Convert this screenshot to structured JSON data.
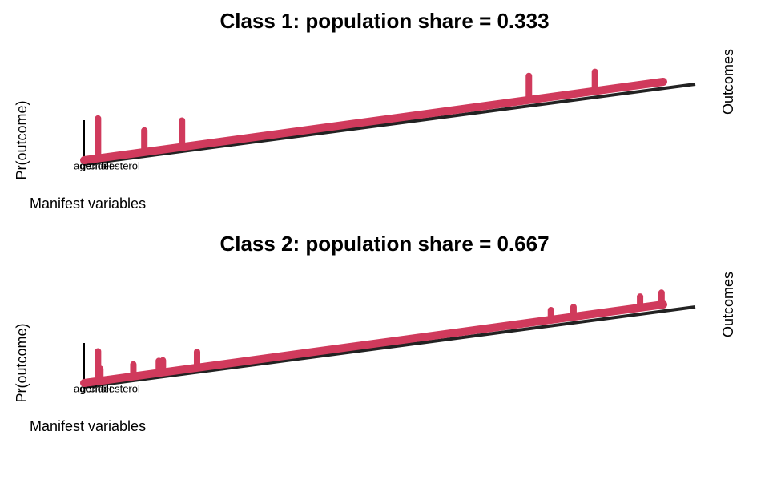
{
  "chart_data": [
    {
      "type": "spike3d",
      "title": "Class 1: population share = 0.333",
      "ylabel": "Pr(outcome)",
      "xlabel": "Manifest variables",
      "zlabel": "Outcomes",
      "variables": [
        "age",
        "gender",
        "cholesterol"
      ],
      "color": "#d03a5c",
      "x": [
        0.024,
        0.104,
        0.169,
        0.768,
        0.882
      ],
      "values": [
        0.83,
        0.45,
        0.55,
        0.5,
        0.4
      ],
      "xlim": [
        0,
        1
      ],
      "ylim": [
        0,
        1
      ]
    },
    {
      "type": "spike3d",
      "title": "Class 2: population share = 0.667",
      "ylabel": "Pr(outcome)",
      "xlabel": "Manifest variables",
      "zlabel": "Outcomes",
      "variables": [
        "age",
        "gender",
        "cholesterol"
      ],
      "color": "#d03a5c",
      "x": [
        0.024,
        0.028,
        0.085,
        0.129,
        0.136,
        0.195,
        0.806,
        0.845,
        0.96,
        0.997
      ],
      "values": [
        0.62,
        0.25,
        0.25,
        0.25,
        0.25,
        0.33,
        0.2,
        0.2,
        0.23,
        0.25
      ],
      "xlim": [
        0,
        1
      ],
      "ylim": [
        0,
        1
      ]
    }
  ]
}
